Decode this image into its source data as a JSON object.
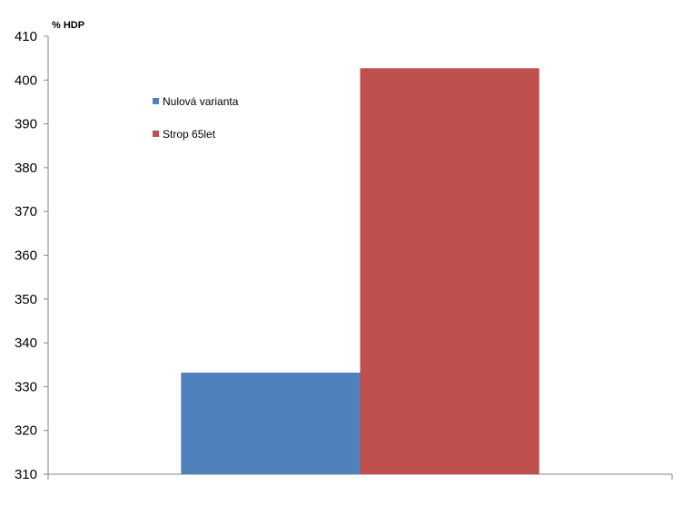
{
  "chart_data": {
    "type": "bar",
    "unit_label": "% HDP",
    "categories": [
      ""
    ],
    "series": [
      {
        "name": "Nulová varianta",
        "values": [
          333.2
        ],
        "color": "#4f81bd"
      },
      {
        "name": "Strop 65let",
        "values": [
          402.7
        ],
        "color": "#c0504d"
      }
    ],
    "ylim": [
      310,
      410
    ],
    "yticks": [
      310,
      320,
      330,
      340,
      350,
      360,
      370,
      380,
      390,
      400,
      410
    ],
    "grid": false,
    "legend": "top-left"
  }
}
